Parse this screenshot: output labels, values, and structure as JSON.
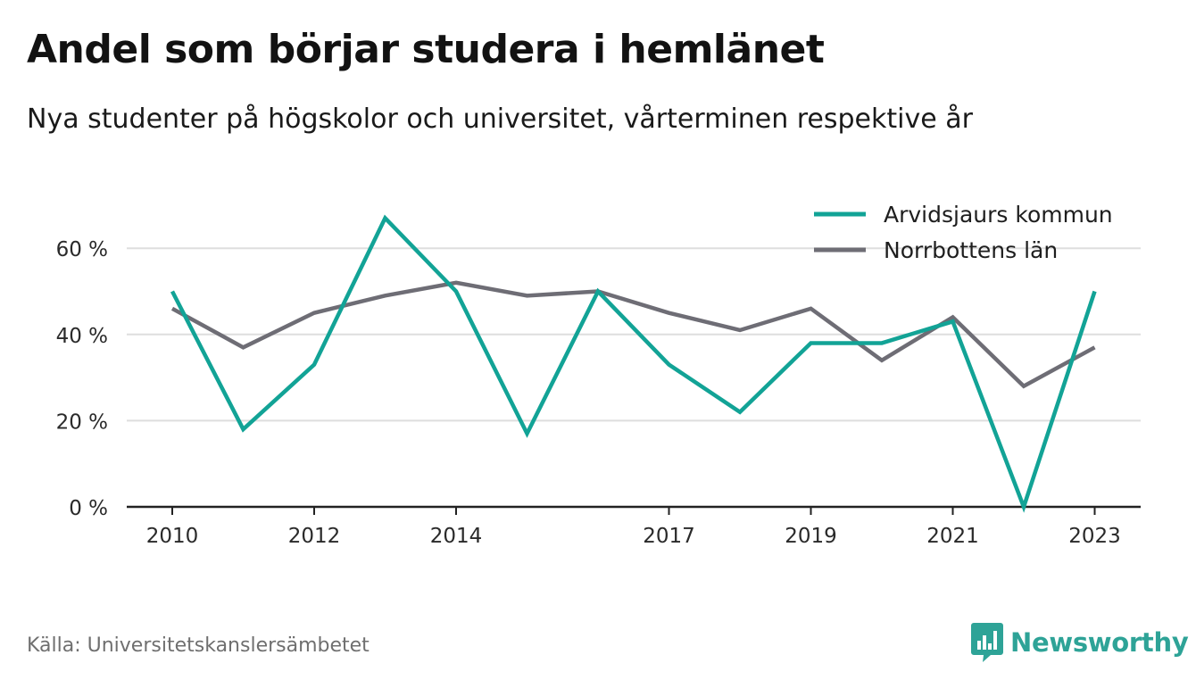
{
  "header": {
    "title": "Andel som börjar studera i hemlänet",
    "subtitle": "Nya studenter på högskolor och universitet, vårterminen respektive år"
  },
  "footer": {
    "source": "Källa: Universitetskanslersämbetet",
    "brand": "Newsworthy",
    "brand_icon": "bar-chart-speech-bubble-icon"
  },
  "colors": {
    "series_1": "#12a396",
    "series_2": "#6e6d75",
    "grid": "#dedede",
    "axis": "#222222",
    "brand": "#2ea397"
  },
  "chart_data": {
    "type": "line",
    "title": "Andel som börjar studera i hemlänet",
    "subtitle": "Nya studenter på högskolor och universitet, vårterminen respektive år",
    "x": [
      2010,
      2011,
      2012,
      2013,
      2014,
      2015,
      2016,
      2017,
      2018,
      2019,
      2020,
      2021,
      2022,
      2023
    ],
    "x_ticks": [
      2010,
      2012,
      2014,
      2017,
      2019,
      2021,
      2023
    ],
    "x_tick_labels": [
      "2010",
      "2012",
      "2014",
      "2017",
      "2019",
      "2021",
      "2023"
    ],
    "y_ticks": [
      0,
      20,
      40,
      60
    ],
    "y_tick_labels": [
      "0 %",
      "20 %",
      "40 %",
      "60 %"
    ],
    "ylim": [
      0,
      60
    ],
    "grid": true,
    "legend_position": "top-right",
    "series": [
      {
        "name": "Arvidsjaurs kommun",
        "values": [
          50,
          18,
          33,
          67,
          50,
          17,
          50,
          33,
          22,
          38,
          38,
          43,
          0,
          50
        ]
      },
      {
        "name": "Norrbottens län",
        "values": [
          46,
          37,
          45,
          49,
          52,
          49,
          50,
          45,
          41,
          46,
          34,
          44,
          28,
          37
        ]
      }
    ]
  }
}
